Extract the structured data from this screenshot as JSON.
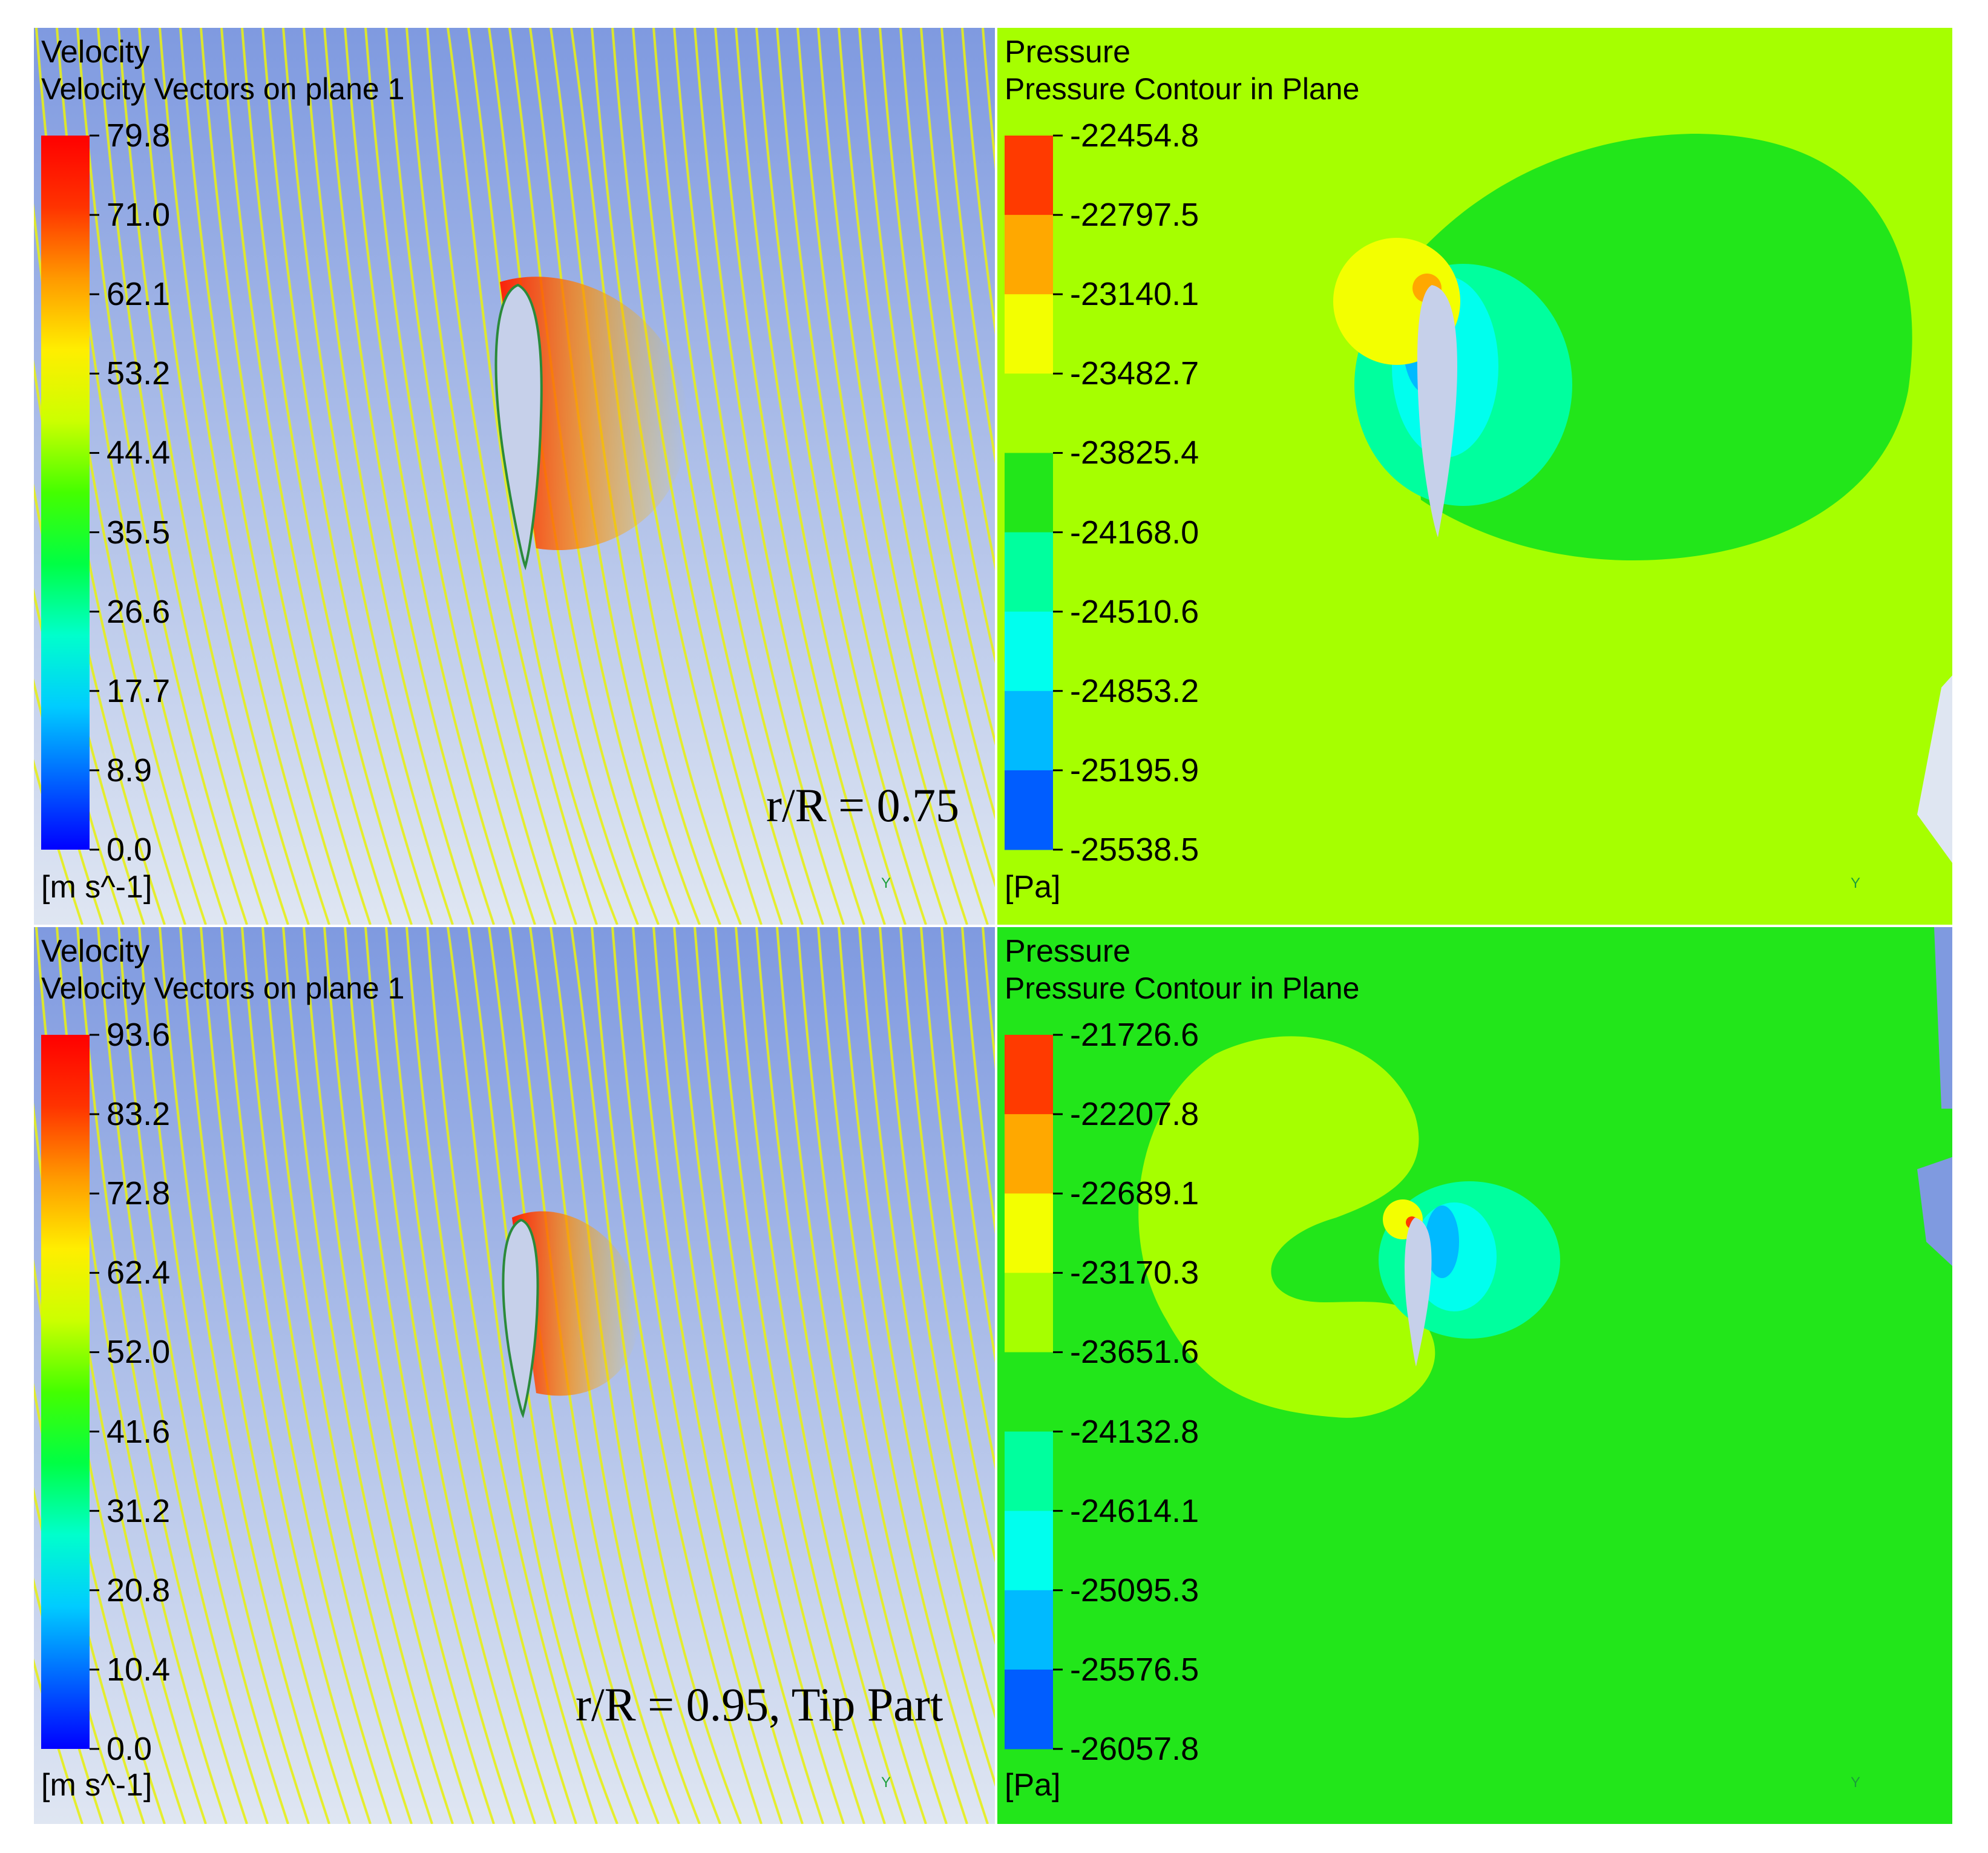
{
  "panels": {
    "top_left": {
      "title": "Velocity",
      "subtitle": "Velocity Vectors on plane 1",
      "legend_labels": [
        "79.8",
        "71.0",
        "62.1",
        "53.2",
        "44.4",
        "35.5",
        "26.6",
        "17.7",
        "8.9",
        "0.0"
      ],
      "unit": "[m s^-1]",
      "caption": "r/R = 0.75",
      "axis_label": "Y"
    },
    "top_right": {
      "title": "Pressure",
      "subtitle": "Pressure Contour in Plane",
      "legend_labels": [
        "-22454.8",
        "-22797.5",
        "-23140.1",
        "-23482.7",
        "-23825.4",
        "-24168.0",
        "-24510.6",
        "-24853.2",
        "-25195.9",
        "-25538.5"
      ],
      "unit": "[Pa]",
      "axis_label": "Y"
    },
    "bottom_left": {
      "title": "Velocity",
      "subtitle": "Velocity Vectors on plane 1",
      "legend_labels": [
        "93.6",
        "83.2",
        "72.8",
        "62.4",
        "52.0",
        "41.6",
        "31.2",
        "20.8",
        "10.4",
        "0.0"
      ],
      "unit": "[m s^-1]",
      "caption": "r/R = 0.95, Tip Part",
      "axis_label": "Y"
    },
    "bottom_right": {
      "title": "Pressure",
      "subtitle": "Pressure Contour in Plane",
      "legend_labels": [
        "-21726.6",
        "-22207.8",
        "-22689.1",
        "-23170.3",
        "-23651.6",
        "-24132.8",
        "-24614.1",
        "-25095.3",
        "-25576.5",
        "-26057.8"
      ],
      "unit": "[Pa]",
      "axis_label": "Y"
    }
  },
  "colors": {
    "velocity_bg_top": "#7f9ae0",
    "velocity_bg_bottom": "#dfe6f2",
    "streamline": "#e6ef1a",
    "pressure_top_field": "#a6ff00",
    "pressure_bottom_field": "#22e61a",
    "cmap_continuous": [
      "#0000ff",
      "#0066ff",
      "#00ccff",
      "#00ffcc",
      "#00ff44",
      "#44ff00",
      "#ccff00",
      "#ffee00",
      "#ff9900",
      "#ff3300",
      "#ff0000"
    ],
    "cmap_bands": [
      "#ff3a00",
      "#ffa800",
      "#f3ff00",
      "#a6ff00",
      "#22e61a",
      "#00ff9e",
      "#00ffee",
      "#00baff",
      "#005dff"
    ]
  }
}
